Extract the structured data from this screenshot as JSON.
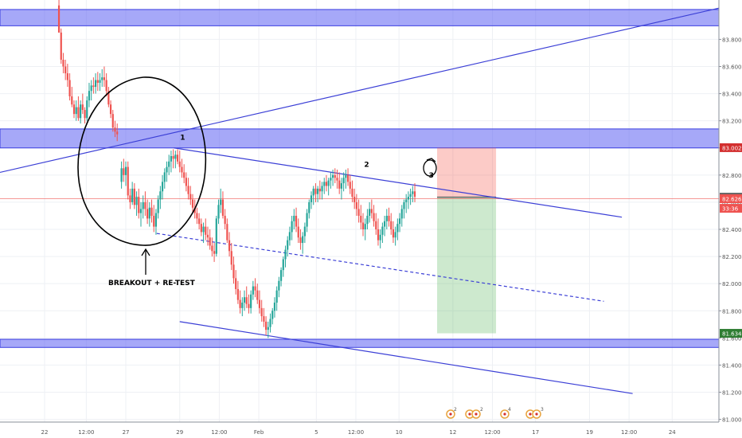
{
  "chart_data": {
    "type": "candlestick",
    "ylim": [
      80.98,
      84.09
    ],
    "xlim": [
      0,
      100
    ],
    "y_ticks": [
      81.0,
      81.2,
      81.4,
      81.6,
      81.8,
      82.0,
      82.2,
      82.4,
      82.6,
      82.8,
      83.0,
      83.2,
      83.4,
      83.6,
      83.8
    ],
    "y_tick_labels": [
      "81.000",
      "81.200",
      "81.400",
      "81.600",
      "81.800",
      "82.000",
      "82.200",
      "82.400",
      "82.600",
      "82.800",
      "83.000",
      "83.200",
      "83.400",
      "83.600",
      "83.800"
    ],
    "x_ticks": [
      {
        "x": 6.2,
        "label": "22"
      },
      {
        "x": 12.0,
        "label": "12:00"
      },
      {
        "x": 17.5,
        "label": "27"
      },
      {
        "x": 25.0,
        "label": "29"
      },
      {
        "x": 30.5,
        "label": "12:00"
      },
      {
        "x": 36.0,
        "label": "Feb"
      },
      {
        "x": 44.0,
        "label": "5"
      },
      {
        "x": 49.5,
        "label": "12:00"
      },
      {
        "x": 55.5,
        "label": "10"
      },
      {
        "x": 63.0,
        "label": "12"
      },
      {
        "x": 68.5,
        "label": "12:00"
      },
      {
        "x": 74.5,
        "label": "17"
      },
      {
        "x": 82.0,
        "label": "19"
      },
      {
        "x": 87.5,
        "label": "12:00"
      },
      {
        "x": 93.5,
        "label": "24"
      }
    ],
    "price_badges": [
      {
        "value": 83.002,
        "label": "83.002",
        "color": "#d32f2f"
      },
      {
        "value": 82.637,
        "label": "82.637",
        "color": "#616161"
      },
      {
        "value": 82.626,
        "label": "82.626",
        "color": "#ef5350"
      },
      {
        "value": 82.555,
        "label": "33:36",
        "color": "#ef5350"
      },
      {
        "value": 81.634,
        "label": "81.634",
        "color": "#2e7d32"
      }
    ],
    "zones": [
      {
        "y0": 83.9,
        "y1": 84.02
      },
      {
        "y0": 83.0,
        "y1": 83.14
      },
      {
        "y0": 81.53,
        "y1": 81.59
      }
    ],
    "lines": [
      {
        "x0": 0,
        "y0": 82.82,
        "x1": 100,
        "y1": 84.03,
        "dashed": false
      },
      {
        "x0": 24.2,
        "y0": 83.0,
        "x1": 86.5,
        "y1": 82.49,
        "dashed": false
      },
      {
        "x0": 21.8,
        "y0": 82.37,
        "x1": 84.0,
        "y1": 81.87,
        "dashed": true
      },
      {
        "x0": 25.0,
        "y0": 81.72,
        "x1": 88.0,
        "y1": 81.19,
        "dashed": false
      }
    ],
    "horizontal_line": 82.626,
    "position": {
      "x0": 60.8,
      "x1": 69.0,
      "entry": 82.637,
      "stop": 83.002,
      "target": 81.634
    },
    "labels": [
      {
        "text": "1",
        "x": 25.4,
        "y": 83.06
      },
      {
        "text": "2",
        "x": 51.0,
        "y": 82.86
      },
      {
        "text": "3",
        "x": 60.0,
        "y": 82.78
      }
    ],
    "annotation": "BREAKOUT + RE-TEST",
    "ohlc": [
      [
        8.2,
        84.05,
        84.09,
        83.85,
        83.85
      ],
      [
        8.5,
        83.85,
        83.88,
        83.62,
        83.65
      ],
      [
        8.8,
        83.65,
        83.7,
        83.55,
        83.6
      ],
      [
        9.1,
        83.6,
        83.65,
        83.5,
        83.55
      ],
      [
        9.4,
        83.55,
        83.62,
        83.45,
        83.5
      ],
      [
        9.7,
        83.5,
        83.55,
        83.35,
        83.38
      ],
      [
        10.0,
        83.38,
        83.45,
        83.3,
        83.32
      ],
      [
        10.3,
        83.32,
        83.35,
        83.22,
        83.25
      ],
      [
        10.6,
        83.25,
        83.35,
        83.2,
        83.3
      ],
      [
        10.9,
        83.3,
        83.38,
        83.2,
        83.22
      ],
      [
        11.2,
        83.22,
        83.35,
        83.18,
        83.32
      ],
      [
        11.5,
        83.32,
        83.4,
        83.25,
        83.28
      ],
      [
        11.8,
        83.28,
        83.3,
        83.18,
        83.22
      ],
      [
        12.1,
        83.22,
        83.38,
        83.2,
        83.35
      ],
      [
        12.4,
        83.35,
        83.48,
        83.3,
        83.42
      ],
      [
        12.7,
        83.42,
        83.5,
        83.35,
        83.46
      ],
      [
        13.0,
        83.46,
        83.52,
        83.4,
        83.45
      ],
      [
        13.3,
        83.45,
        83.55,
        83.4,
        83.5
      ],
      [
        13.6,
        83.5,
        83.56,
        83.42,
        83.48
      ],
      [
        13.9,
        83.48,
        83.55,
        83.42,
        83.5
      ],
      [
        14.2,
        83.5,
        83.58,
        83.45,
        83.52
      ],
      [
        14.5,
        83.52,
        83.6,
        83.45,
        83.5
      ],
      [
        14.8,
        83.5,
        83.55,
        83.38,
        83.42
      ],
      [
        15.1,
        83.42,
        83.45,
        83.3,
        83.32
      ],
      [
        15.4,
        83.32,
        83.35,
        83.22,
        83.25
      ],
      [
        15.7,
        83.25,
        83.28,
        83.12,
        83.15
      ],
      [
        16.0,
        83.15,
        83.2,
        83.08,
        83.12
      ],
      [
        16.3,
        83.12,
        83.18,
        83.05,
        83.1
      ],
      [
        16.9,
        82.75,
        82.9,
        82.7,
        82.85
      ],
      [
        17.2,
        82.85,
        82.92,
        82.75,
        82.8
      ],
      [
        17.5,
        82.8,
        82.9,
        82.72,
        82.86
      ],
      [
        17.8,
        82.86,
        82.9,
        82.62,
        82.65
      ],
      [
        18.1,
        82.65,
        82.7,
        82.55,
        82.6
      ],
      [
        18.4,
        82.6,
        82.75,
        82.58,
        82.7
      ],
      [
        18.7,
        82.7,
        82.74,
        82.55,
        82.58
      ],
      [
        19.0,
        82.58,
        82.68,
        82.5,
        82.64
      ],
      [
        19.3,
        82.64,
        82.7,
        82.48,
        82.52
      ],
      [
        19.6,
        82.52,
        82.6,
        82.42,
        82.55
      ],
      [
        19.9,
        82.55,
        82.65,
        82.48,
        82.6
      ],
      [
        20.2,
        82.6,
        82.68,
        82.5,
        82.55
      ],
      [
        20.5,
        82.55,
        82.62,
        82.44,
        82.48
      ],
      [
        20.8,
        82.48,
        82.6,
        82.42,
        82.56
      ],
      [
        21.1,
        82.56,
        82.62,
        82.45,
        82.5
      ],
      [
        21.4,
        82.5,
        82.58,
        82.38,
        82.42
      ],
      [
        21.7,
        82.42,
        82.55,
        82.36,
        82.52
      ],
      [
        22.0,
        82.52,
        82.65,
        82.48,
        82.62
      ],
      [
        22.3,
        82.62,
        82.72,
        82.55,
        82.68
      ],
      [
        22.6,
        82.68,
        82.8,
        82.62,
        82.75
      ],
      [
        22.9,
        82.75,
        82.85,
        82.7,
        82.82
      ],
      [
        23.2,
        82.82,
        82.9,
        82.75,
        82.86
      ],
      [
        23.5,
        82.86,
        82.95,
        82.8,
        82.9
      ],
      [
        23.8,
        82.9,
        82.98,
        82.82,
        82.94
      ],
      [
        24.1,
        82.94,
        82.99,
        82.85,
        82.92
      ],
      [
        24.4,
        82.92,
        82.98,
        82.85,
        82.95
      ],
      [
        24.7,
        82.95,
        82.99,
        82.88,
        82.9
      ],
      [
        25.0,
        82.9,
        82.98,
        82.82,
        82.86
      ],
      [
        25.3,
        82.86,
        82.92,
        82.78,
        82.82
      ],
      [
        25.6,
        82.82,
        82.88,
        82.74,
        82.78
      ],
      [
        25.9,
        82.78,
        82.82,
        82.68,
        82.72
      ],
      [
        26.2,
        82.72,
        82.78,
        82.62,
        82.66
      ],
      [
        26.5,
        82.66,
        82.72,
        82.58,
        82.62
      ],
      [
        26.8,
        82.62,
        82.66,
        82.52,
        82.56
      ],
      [
        27.1,
        82.56,
        82.62,
        82.48,
        82.52
      ],
      [
        27.4,
        82.52,
        82.56,
        82.44,
        82.48
      ],
      [
        27.7,
        82.48,
        82.52,
        82.4,
        82.44
      ],
      [
        28.0,
        82.44,
        82.48,
        82.35,
        82.38
      ],
      [
        28.3,
        82.38,
        82.45,
        82.3,
        82.42
      ],
      [
        28.6,
        82.42,
        82.48,
        82.32,
        82.36
      ],
      [
        28.9,
        82.36,
        82.42,
        82.28,
        82.34
      ],
      [
        29.2,
        82.34,
        82.4,
        82.25,
        82.28
      ],
      [
        29.5,
        82.28,
        82.34,
        82.2,
        82.24
      ],
      [
        29.8,
        82.24,
        82.3,
        82.16,
        82.22
      ],
      [
        30.1,
        82.22,
        82.5,
        82.2,
        82.48
      ],
      [
        30.4,
        82.48,
        82.62,
        82.44,
        82.58
      ],
      [
        30.7,
        82.58,
        82.7,
        82.52,
        82.62
      ],
      [
        31.0,
        82.62,
        82.68,
        82.48,
        82.5
      ],
      [
        31.3,
        82.5,
        82.55,
        82.4,
        82.44
      ],
      [
        31.6,
        82.44,
        82.48,
        82.3,
        82.32
      ],
      [
        31.9,
        82.32,
        82.38,
        82.2,
        82.24
      ],
      [
        32.2,
        82.24,
        82.3,
        82.1,
        82.14
      ],
      [
        32.5,
        82.14,
        82.2,
        82.0,
        82.04
      ],
      [
        32.8,
        82.04,
        82.1,
        81.92,
        81.96
      ],
      [
        33.1,
        81.96,
        82.02,
        81.85,
        81.88
      ],
      [
        33.4,
        81.88,
        81.95,
        81.78,
        81.82
      ],
      [
        33.7,
        81.82,
        81.9,
        81.76,
        81.86
      ],
      [
        34.0,
        81.86,
        81.95,
        81.8,
        81.9
      ],
      [
        34.3,
        81.9,
        81.98,
        81.82,
        81.85
      ],
      [
        34.6,
        81.85,
        81.92,
        81.78,
        81.82
      ],
      [
        34.9,
        81.82,
        81.95,
        81.78,
        81.92
      ],
      [
        35.2,
        81.92,
        82.02,
        81.88,
        81.98
      ],
      [
        35.5,
        81.98,
        82.04,
        81.9,
        81.95
      ],
      [
        35.8,
        81.95,
        82.0,
        81.85,
        81.88
      ],
      [
        36.1,
        81.88,
        81.95,
        81.78,
        81.82
      ],
      [
        36.4,
        81.82,
        81.88,
        81.72,
        81.76
      ],
      [
        36.7,
        81.76,
        81.82,
        81.68,
        81.72
      ],
      [
        37.0,
        81.72,
        81.76,
        81.62,
        81.66
      ],
      [
        37.3,
        81.66,
        81.72,
        81.6,
        81.68
      ],
      [
        37.6,
        81.68,
        81.78,
        81.64,
        81.74
      ],
      [
        37.9,
        81.74,
        81.82,
        81.7,
        81.8
      ],
      [
        38.2,
        81.8,
        81.9,
        81.75,
        81.86
      ],
      [
        38.5,
        81.86,
        81.98,
        81.8,
        81.95
      ],
      [
        38.8,
        81.95,
        82.05,
        81.9,
        82.02
      ],
      [
        39.1,
        82.02,
        82.12,
        81.98,
        82.1
      ],
      [
        39.4,
        82.1,
        82.2,
        82.05,
        82.18
      ],
      [
        39.7,
        82.18,
        82.28,
        82.12,
        82.25
      ],
      [
        40.0,
        82.25,
        82.35,
        82.2,
        82.32
      ],
      [
        40.3,
        82.32,
        82.42,
        82.28,
        82.38
      ],
      [
        40.6,
        82.38,
        82.5,
        82.32,
        82.46
      ],
      [
        40.9,
        82.46,
        82.55,
        82.4,
        82.5
      ],
      [
        41.2,
        82.5,
        82.56,
        82.38,
        82.42
      ],
      [
        41.5,
        82.42,
        82.48,
        82.3,
        82.34
      ],
      [
        41.8,
        82.34,
        82.4,
        82.25,
        82.3
      ],
      [
        42.1,
        82.3,
        82.38,
        82.22,
        82.35
      ],
      [
        42.4,
        82.35,
        82.45,
        82.3,
        82.42
      ],
      [
        42.7,
        82.42,
        82.55,
        82.38,
        82.52
      ],
      [
        43.0,
        82.52,
        82.62,
        82.48,
        82.6
      ],
      [
        43.3,
        82.6,
        82.68,
        82.55,
        82.65
      ],
      [
        43.6,
        82.65,
        82.72,
        82.58,
        82.7
      ],
      [
        43.9,
        82.7,
        82.74,
        82.6,
        82.66
      ],
      [
        44.2,
        82.66,
        82.72,
        82.6,
        82.7
      ],
      [
        44.5,
        82.7,
        82.76,
        82.62,
        82.68
      ],
      [
        44.8,
        82.68,
        82.75,
        82.62,
        82.72
      ],
      [
        45.1,
        82.72,
        82.78,
        82.66,
        82.75
      ],
      [
        45.4,
        82.75,
        82.8,
        82.68,
        82.72
      ],
      [
        45.7,
        82.72,
        82.78,
        82.65,
        82.76
      ],
      [
        46.0,
        82.76,
        82.82,
        82.7,
        82.78
      ],
      [
        46.3,
        82.78,
        82.84,
        82.72,
        82.8
      ],
      [
        46.6,
        82.8,
        82.85,
        82.74,
        82.78
      ],
      [
        46.9,
        82.78,
        82.84,
        82.7,
        82.76
      ],
      [
        47.2,
        82.76,
        82.82,
        82.66,
        82.7
      ],
      [
        47.5,
        82.7,
        82.78,
        82.62,
        82.74
      ],
      [
        47.8,
        82.74,
        82.82,
        82.68,
        82.78
      ],
      [
        48.1,
        82.78,
        82.84,
        82.7,
        82.8
      ],
      [
        48.4,
        82.8,
        82.85,
        82.72,
        82.75
      ],
      [
        48.7,
        82.75,
        82.8,
        82.66,
        82.7
      ],
      [
        49.0,
        82.7,
        82.76,
        82.6,
        82.64
      ],
      [
        49.3,
        82.64,
        82.7,
        82.55,
        82.6
      ],
      [
        49.6,
        82.6,
        82.66,
        82.5,
        82.55
      ],
      [
        49.9,
        82.55,
        82.62,
        82.45,
        82.5
      ],
      [
        50.2,
        82.5,
        82.58,
        82.4,
        82.45
      ],
      [
        50.5,
        82.45,
        82.52,
        82.35,
        82.4
      ],
      [
        50.8,
        82.4,
        82.48,
        82.32,
        82.44
      ],
      [
        51.1,
        82.44,
        82.55,
        82.4,
        82.5
      ],
      [
        51.4,
        82.5,
        82.6,
        82.45,
        82.55
      ],
      [
        51.7,
        82.55,
        82.62,
        82.48,
        82.52
      ],
      [
        52.0,
        82.52,
        82.58,
        82.42,
        82.46
      ],
      [
        52.3,
        82.46,
        82.52,
        82.36,
        82.4
      ],
      [
        52.6,
        82.4,
        82.48,
        82.28,
        82.32
      ],
      [
        52.9,
        82.32,
        82.4,
        82.26,
        82.36
      ],
      [
        53.2,
        82.36,
        82.45,
        82.3,
        82.42
      ],
      [
        53.5,
        82.42,
        82.5,
        82.35,
        82.46
      ],
      [
        53.8,
        82.46,
        82.55,
        82.4,
        82.5
      ],
      [
        54.1,
        82.5,
        82.56,
        82.42,
        82.46
      ],
      [
        54.4,
        82.46,
        82.52,
        82.36,
        82.4
      ],
      [
        54.7,
        82.4,
        82.46,
        82.3,
        82.34
      ],
      [
        55.0,
        82.34,
        82.42,
        82.28,
        82.38
      ],
      [
        55.3,
        82.38,
        82.48,
        82.32,
        82.44
      ],
      [
        55.6,
        82.44,
        82.52,
        82.38,
        82.48
      ],
      [
        55.9,
        82.48,
        82.58,
        82.42,
        82.55
      ],
      [
        56.2,
        82.55,
        82.62,
        82.48,
        82.6
      ],
      [
        56.5,
        82.6,
        82.66,
        82.52,
        82.62
      ],
      [
        56.8,
        82.62,
        82.68,
        82.55,
        82.64
      ],
      [
        57.1,
        82.64,
        82.7,
        82.58,
        82.66
      ],
      [
        57.4,
        82.66,
        82.72,
        82.6,
        82.68
      ],
      [
        57.7,
        82.68,
        82.74,
        82.6,
        82.64
      ]
    ]
  }
}
